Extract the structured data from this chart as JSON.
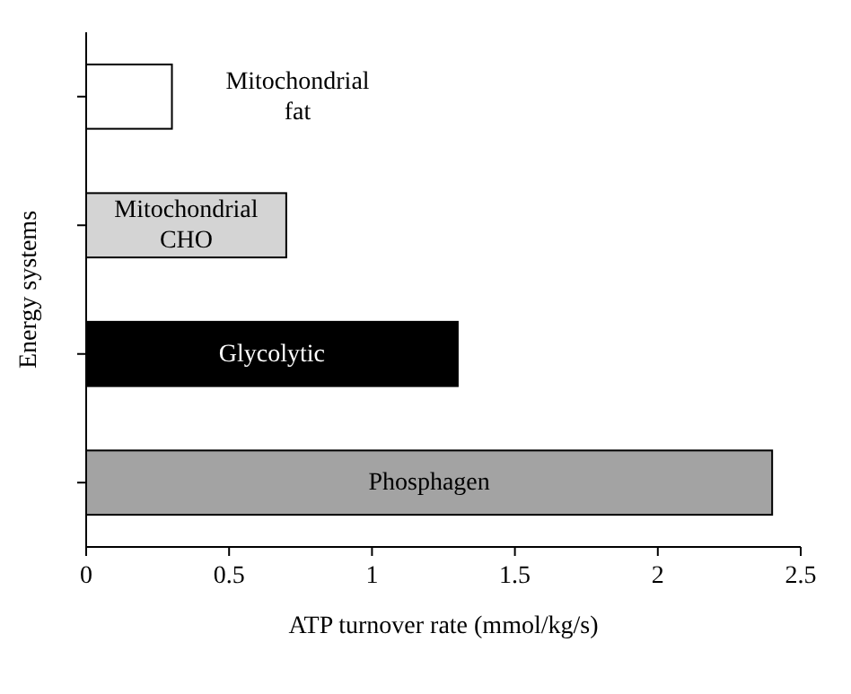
{
  "chart_data": {
    "type": "bar",
    "orientation": "horizontal",
    "categories": [
      "Mitochondrial fat",
      "Mitochondrial CHO",
      "Glycolytic",
      "Phosphagen"
    ],
    "values": [
      0.3,
      0.7,
      1.3,
      2.4
    ],
    "colors": [
      "#ffffff",
      "#d4d4d4",
      "#000000",
      "#a3a3a3"
    ],
    "xlabel": "ATP turnover rate (mmol/kg/s)",
    "ylabel": "Energy systems",
    "xlim": [
      0,
      2.5
    ],
    "xticks": [
      0,
      0.5,
      1,
      1.5,
      2,
      2.5
    ],
    "tick_labels": "x",
    "grid": false
  }
}
